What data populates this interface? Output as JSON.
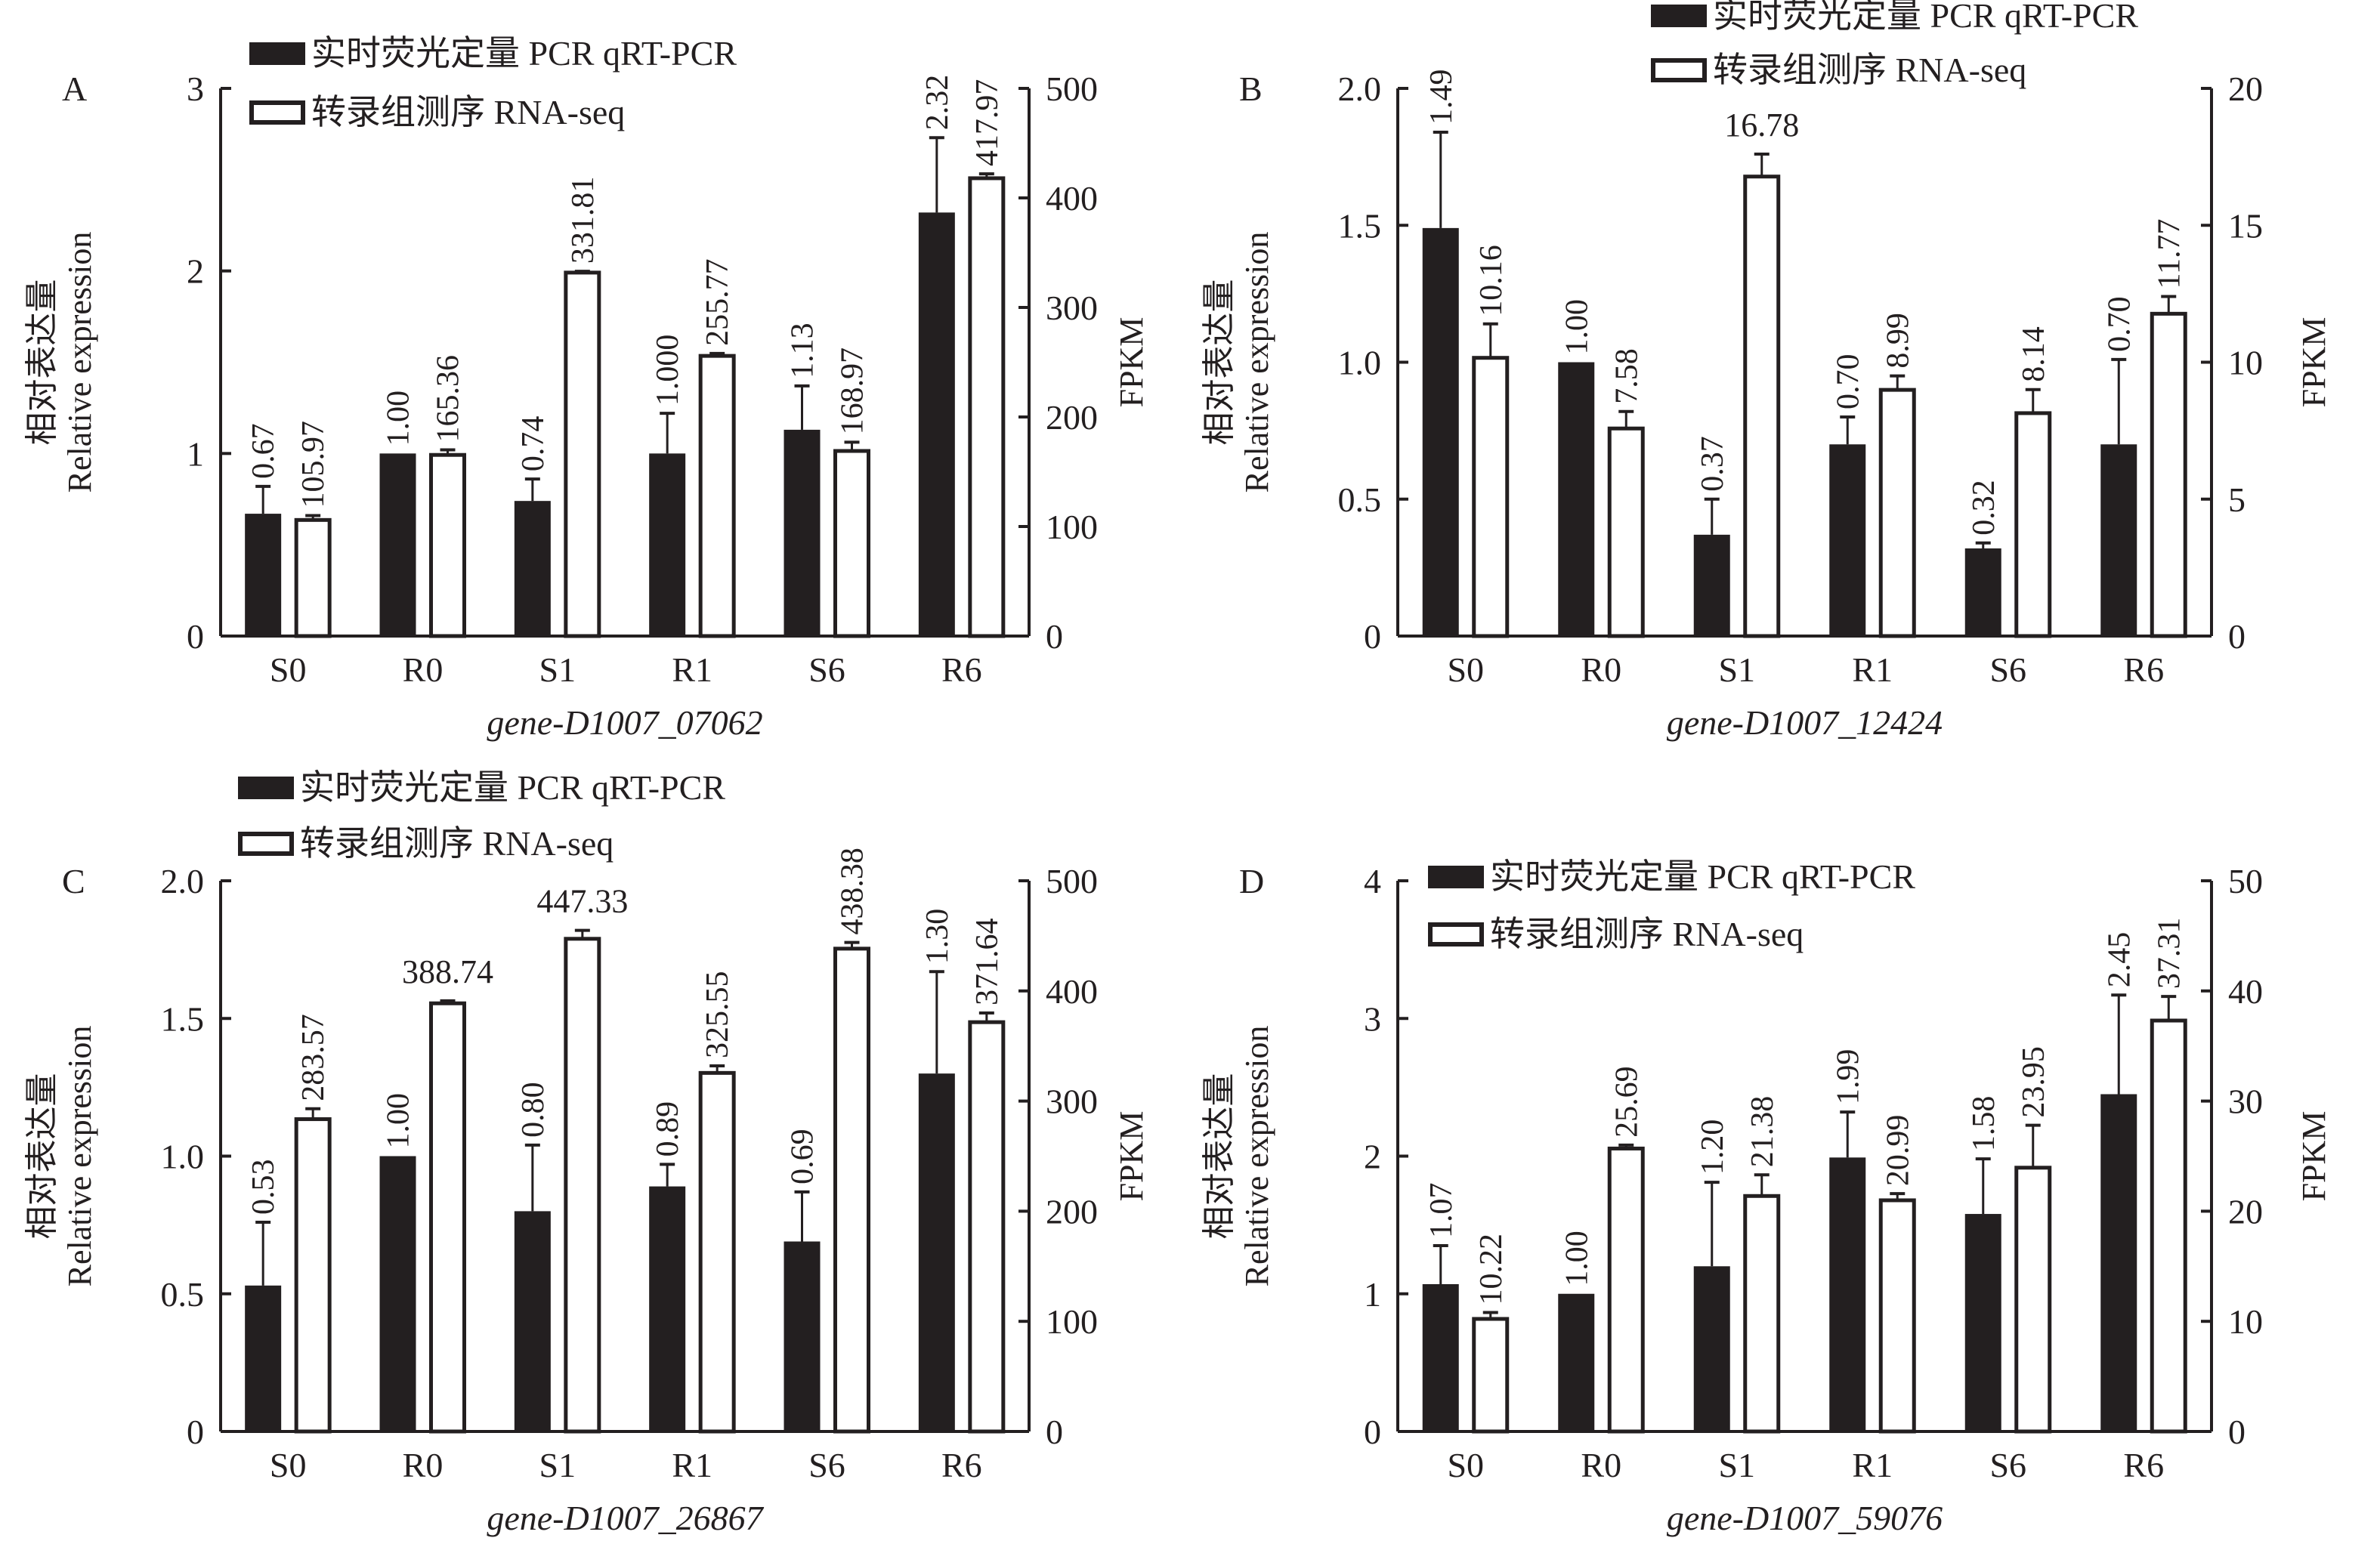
{
  "legend": {
    "qpcr": "实时荧光定量 PCR qRT-PCR",
    "rnaseq": "转录组测序 RNA-seq"
  },
  "colors": {
    "qpcr_fill": "#231f20",
    "rnaseq_fill": "#ffffff",
    "stroke": "#231f20"
  },
  "chart_data": [
    {
      "type": "bar",
      "panel": "A",
      "title": "gene-D1007_07062",
      "xlabel": "gene-D1007_07062",
      "ylabel": [
        "相对表达量",
        "Relative expression"
      ],
      "ylabel_right": "FPKM",
      "categories": [
        "S0",
        "R0",
        "S1",
        "R1",
        "S6",
        "R6"
      ],
      "ylim": [
        0,
        3
      ],
      "yticks": [
        "0",
        "1",
        "2",
        "3"
      ],
      "ytick_values": [
        0,
        1,
        2,
        3
      ],
      "ylim_right": [
        0,
        500
      ],
      "yticks_right": [
        "0",
        "100",
        "200",
        "300",
        "400",
        "500"
      ],
      "ytick_values_right": [
        0,
        100,
        200,
        300,
        400,
        500
      ],
      "legend_position": "top-left",
      "series": [
        {
          "name": "实时荧光定量 PCR qRT-PCR",
          "axis": "left",
          "values": [
            0.67,
            1.0,
            0.74,
            1.0,
            1.13,
            2.32
          ],
          "labels": [
            "0.67",
            "1.00",
            "0.74",
            "1.000",
            "1.13",
            "2.32"
          ],
          "error_top": [
            0.82,
            null,
            0.86,
            1.22,
            1.37,
            2.73
          ]
        },
        {
          "name": "转录组测序 RNA-seq",
          "axis": "right",
          "values": [
            105.97,
            165.36,
            331.81,
            255.77,
            168.97,
            417.97
          ],
          "labels": [
            "105.97",
            "165.36",
            "331.81",
            "255.77",
            "168.97",
            "417.97"
          ],
          "error_top": [
            110,
            170,
            333,
            258,
            177,
            422
          ]
        }
      ]
    },
    {
      "type": "bar",
      "panel": "B",
      "title": "gene-D1007_12424",
      "xlabel": "gene-D1007_12424",
      "ylabel": [
        "相对表达量",
        "Relative expression"
      ],
      "ylabel_right": "FPKM",
      "categories": [
        "S0",
        "R0",
        "S1",
        "R1",
        "S6",
        "R6"
      ],
      "ylim": [
        0,
        2
      ],
      "yticks": [
        "0",
        "0.5",
        "1.0",
        "1.5",
        "2.0"
      ],
      "ytick_values": [
        0,
        0.5,
        1,
        1.5,
        2
      ],
      "ylim_right": [
        0,
        20
      ],
      "yticks_right": [
        "0",
        "5",
        "10",
        "15",
        "20"
      ],
      "ytick_values_right": [
        0,
        5,
        10,
        15,
        20
      ],
      "legend_position": "top-right",
      "series": [
        {
          "name": "实时荧光定量 PCR qRT-PCR",
          "axis": "left",
          "values": [
            1.49,
            1.0,
            0.37,
            0.7,
            0.32,
            0.7
          ],
          "labels": [
            "1.49",
            "1.00",
            "0.37",
            "0.70",
            "0.32",
            "0.70"
          ],
          "error_top": [
            1.84,
            null,
            0.5,
            0.8,
            0.34,
            1.01
          ]
        },
        {
          "name": "转录组测序 RNA-seq",
          "axis": "right",
          "values": [
            10.16,
            7.58,
            16.78,
            8.99,
            8.14,
            11.77
          ],
          "labels": [
            "10.16",
            "7.58",
            "16.78",
            "8.99",
            "8.14",
            "11.77"
          ],
          "error_top": [
            11.4,
            8.2,
            17.6,
            9.5,
            9.0,
            12.4
          ]
        }
      ]
    },
    {
      "type": "bar",
      "panel": "C",
      "title": "gene-D1007_26867",
      "xlabel": "gene-D1007_26867",
      "ylabel": [
        "相对表达量",
        "Relative expression"
      ],
      "ylabel_right": "FPKM",
      "categories": [
        "S0",
        "R0",
        "S1",
        "R1",
        "S6",
        "R6"
      ],
      "ylim": [
        0,
        2
      ],
      "yticks": [
        "0",
        "0.5",
        "1.0",
        "1.5",
        "2.0"
      ],
      "ytick_values": [
        0,
        0.5,
        1,
        1.5,
        2
      ],
      "ylim_right": [
        0,
        500
      ],
      "yticks_right": [
        "0",
        "100",
        "200",
        "300",
        "400",
        "500"
      ],
      "ytick_values_right": [
        0,
        100,
        200,
        300,
        400,
        500
      ],
      "legend_position": "top-left",
      "series": [
        {
          "name": "实时荧光定量 PCR qRT-PCR",
          "axis": "left",
          "values": [
            0.53,
            1.0,
            0.8,
            0.89,
            0.69,
            1.3
          ],
          "labels": [
            "0.53",
            "1.00",
            "0.80",
            "0.89",
            "0.69",
            "1.30"
          ],
          "error_top": [
            0.76,
            null,
            1.04,
            0.97,
            0.87,
            1.67
          ]
        },
        {
          "name": "转录组测序 RNA-seq",
          "axis": "right",
          "values": [
            283.57,
            388.74,
            447.33,
            325.55,
            438.38,
            371.64
          ],
          "labels": [
            "283.57",
            "388.74",
            "447.33",
            "325.55",
            "438.38",
            "371.64"
          ],
          "error_top": [
            293,
            391,
            455,
            332,
            444,
            380
          ]
        }
      ]
    },
    {
      "type": "bar",
      "panel": "D",
      "title": "gene-D1007_59076",
      "xlabel": "gene-D1007_59076",
      "ylabel": [
        "相对表达量",
        "Relative expression"
      ],
      "ylabel_right": "FPKM",
      "categories": [
        "S0",
        "R0",
        "S1",
        "R1",
        "S6",
        "R6"
      ],
      "ylim": [
        0,
        4
      ],
      "yticks": [
        "0",
        "1",
        "2",
        "3",
        "4"
      ],
      "ytick_values": [
        0,
        1,
        2,
        3,
        4
      ],
      "ylim_right": [
        0,
        50
      ],
      "yticks_right": [
        "0",
        "10",
        "20",
        "30",
        "40",
        "50"
      ],
      "ytick_values_right": [
        0,
        10,
        20,
        30,
        40,
        50
      ],
      "legend_position": "top-left",
      "series": [
        {
          "name": "实时荧光定量 PCR qRT-PCR",
          "axis": "left",
          "values": [
            1.07,
            1.0,
            1.2,
            1.99,
            1.58,
            2.45
          ],
          "labels": [
            "1.07",
            "1.00",
            "1.20",
            "1.99",
            "1.58",
            "2.45"
          ],
          "error_top": [
            1.35,
            null,
            1.81,
            2.32,
            1.98,
            3.17
          ]
        },
        {
          "name": "转录组测序 RNA-seq",
          "axis": "right",
          "values": [
            10.22,
            25.69,
            21.38,
            20.99,
            23.95,
            37.31
          ],
          "labels": [
            "10.22",
            "25.69",
            "21.38",
            "20.99",
            "23.95",
            "37.31"
          ],
          "error_top": [
            10.8,
            26.0,
            23.3,
            21.6,
            27.8,
            39.5
          ]
        }
      ]
    }
  ]
}
